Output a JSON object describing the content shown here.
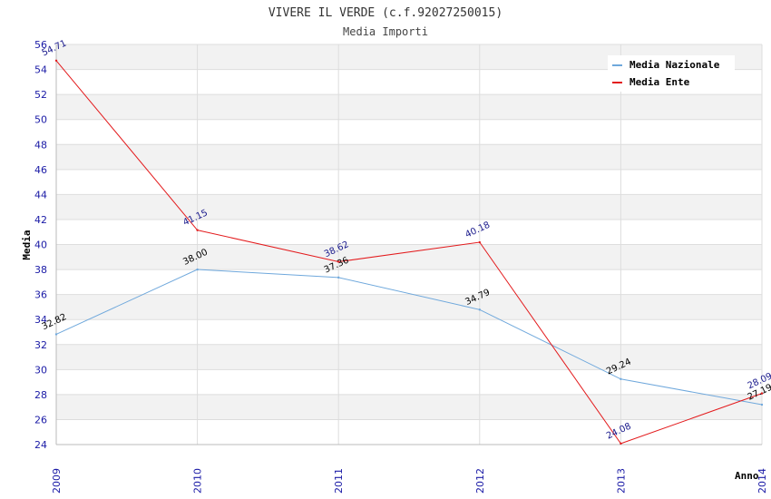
{
  "colors": {
    "naz": "#6fa8dc",
    "ente": "#e31a1c",
    "band": "#f2f2f2",
    "gridline": "#dddddd",
    "tick_text": "#1a1aa6"
  },
  "chart_data": {
    "type": "line",
    "title": "VIVERE IL VERDE (c.f.92027250015)",
    "subtitle": "Media Importi",
    "xlabel": "Anno",
    "ylabel": "Media",
    "ylim": [
      24,
      56
    ],
    "yticks": [
      "24",
      "26",
      "28",
      "30",
      "32",
      "34",
      "36",
      "38",
      "40",
      "42",
      "44",
      "46",
      "48",
      "50",
      "52",
      "54",
      "56"
    ],
    "categories": [
      "2009",
      "2010",
      "2011",
      "2012",
      "2013",
      "2014"
    ],
    "grid": true,
    "legend_position": "top-right",
    "series": [
      {
        "name": "Media Nazionale",
        "color": "#6fa8dc",
        "values": [
          32.82,
          38.0,
          37.36,
          34.79,
          29.24,
          27.19
        ],
        "labels": [
          "32.82",
          "38.00",
          "37.36",
          "34.79",
          "29.24",
          "27.19"
        ]
      },
      {
        "name": "Media Ente",
        "color": "#e31a1c",
        "values": [
          54.71,
          41.15,
          38.62,
          40.18,
          24.08,
          28.09
        ],
        "labels": [
          "54.71",
          "41.15",
          "38.62",
          "40.18",
          "24.08",
          "28.09"
        ]
      }
    ]
  }
}
